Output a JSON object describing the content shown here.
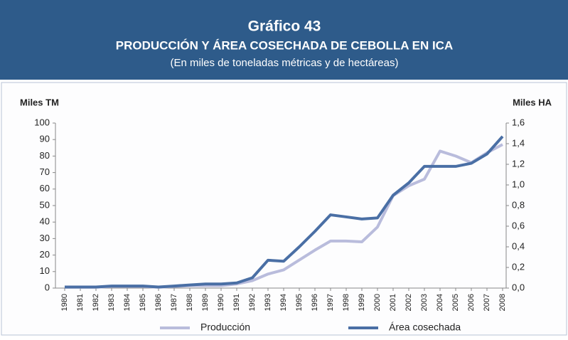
{
  "header": {
    "title": "Gráfico 43",
    "subtitle": "PRODUCCIÓN Y ÁREA COSECHADA DE CEBOLLA EN ICA",
    "note": "(En miles de toneladas métricas y de hectáreas)"
  },
  "chart_data": {
    "type": "line",
    "y_label": "Miles TM",
    "y2_label": "Miles HA",
    "categories": [
      "1980",
      "1981",
      "1982",
      "1983",
      "1984",
      "1985",
      "1986",
      "1987",
      "1988",
      "1989",
      "1990",
      "1991",
      "1992",
      "1993",
      "1994",
      "1995",
      "1996",
      "1997",
      "1998",
      "1999",
      "2000",
      "2001",
      "2002",
      "2003",
      "2004",
      "2005",
      "2006",
      "2007",
      "2008"
    ],
    "series": [
      {
        "name": "Producción",
        "color": "#b9bcdc",
        "values": [
          0.5,
          0.5,
          0.5,
          1,
          1,
          1,
          0.5,
          1,
          1.5,
          1.5,
          1.5,
          2.5,
          4.5,
          8.5,
          11,
          17,
          23,
          28.5,
          28.5,
          28,
          37,
          56,
          62,
          66,
          83,
          80,
          76,
          82,
          87
        ]
      },
      {
        "name": "Área cosechada",
        "color": "#4a6fa5",
        "axis": "y2",
        "values": [
          0.01,
          0.01,
          0.01,
          0.02,
          0.02,
          0.02,
          0.01,
          0.02,
          0.03,
          0.04,
          0.04,
          0.05,
          0.1,
          0.27,
          0.26,
          0.4,
          0.55,
          0.71,
          0.69,
          0.67,
          0.68,
          0.9,
          1.02,
          1.18,
          1.18,
          1.18,
          1.21,
          1.3,
          1.47
        ]
      }
    ],
    "ylim": [
      0,
      100
    ],
    "yticks": [
      0,
      10,
      20,
      30,
      40,
      50,
      60,
      70,
      80,
      90,
      100
    ],
    "y2lim": [
      0,
      1.6
    ],
    "y2ticks": [
      {
        "value": 0,
        "label": "0,0"
      },
      {
        "value": 0.2,
        "label": "0,2"
      },
      {
        "value": 0.4,
        "label": "0,4"
      },
      {
        "value": 0.6,
        "label": "0,6"
      },
      {
        "value": 0.8,
        "label": "0,8"
      },
      {
        "value": 1,
        "label": "1,0"
      },
      {
        "value": 1.2,
        "label": "1,2"
      },
      {
        "value": 1.4,
        "label": "1,4"
      },
      {
        "value": 1.6,
        "label": "1,6"
      }
    ],
    "legend": "bottom"
  }
}
